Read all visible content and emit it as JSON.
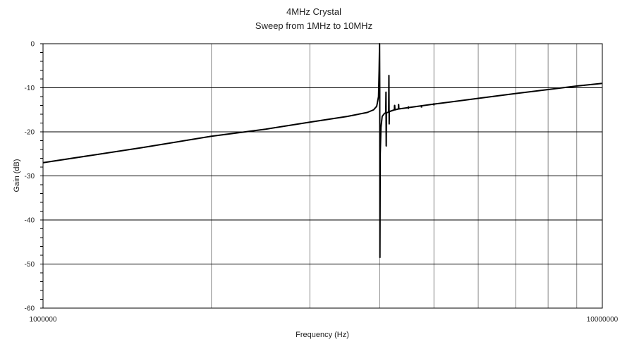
{
  "chart_data": {
    "type": "line",
    "title": "4MHz Crystal",
    "subtitle": "Sweep from 1MHz to 10MHz",
    "xlabel": "Frequency (Hz)",
    "ylabel": "Gain (dB)",
    "xscale": "log",
    "xlim": [
      1000000,
      10000000
    ],
    "ylim": [
      -60,
      0
    ],
    "x_tick_labels": [
      "1000000",
      "10000000"
    ],
    "y_ticks": [
      0,
      -10,
      -20,
      -30,
      -40,
      -50,
      -60
    ],
    "grid": true,
    "legend": "none",
    "series": [
      {
        "color": "#000000",
        "points": [
          [
            1000000,
            -27.0
          ],
          [
            1500000,
            -23.6
          ],
          [
            2000000,
            -21.0
          ],
          [
            2500000,
            -19.4
          ],
          [
            3000000,
            -17.8
          ],
          [
            3500000,
            -16.5
          ],
          [
            3800000,
            -15.6
          ],
          [
            3900000,
            -15.0
          ],
          [
            3950000,
            -14.2
          ],
          [
            3980000,
            -12.0
          ],
          [
            3990000,
            -6.0
          ],
          [
            3997000,
            0.0
          ],
          [
            4000000,
            -10.0
          ],
          [
            4003000,
            -48.5
          ],
          [
            4008000,
            -25.0
          ],
          [
            4020000,
            -19.0
          ],
          [
            4040000,
            -16.5
          ],
          [
            4080000,
            -15.8
          ],
          [
            4100000,
            -15.7
          ],
          [
            4104000,
            -11.0
          ],
          [
            4108000,
            -23.2
          ],
          [
            4112000,
            -15.7
          ],
          [
            4150000,
            -15.5
          ],
          [
            4154000,
            -7.2
          ],
          [
            4158000,
            -18.2
          ],
          [
            4162000,
            -15.4
          ],
          [
            4250000,
            -15.0
          ],
          [
            4254000,
            -14.0
          ],
          [
            4258000,
            -15.0
          ],
          [
            4320000,
            -14.8
          ],
          [
            4324000,
            -13.8
          ],
          [
            4328000,
            -14.8
          ],
          [
            4500000,
            -14.5
          ],
          [
            5000000,
            -13.7
          ],
          [
            6000000,
            -12.4
          ],
          [
            7000000,
            -11.3
          ],
          [
            8000000,
            -10.4
          ],
          [
            9000000,
            -9.6
          ],
          [
            10000000,
            -9.0
          ]
        ]
      }
    ],
    "spikes": [
      {
        "x": 4250000,
        "y_top": -14.0,
        "y_bottom": -15.0
      },
      {
        "x": 4320000,
        "y_top": -13.8,
        "y_bottom": -14.8
      },
      {
        "x": 4500000,
        "y_top": -14.2,
        "y_bottom": -14.8
      },
      {
        "x": 4750000,
        "y_top": -14.0,
        "y_bottom": -14.5
      },
      {
        "x": 5000000,
        "y_top": -13.5,
        "y_bottom": -14.0
      }
    ]
  }
}
